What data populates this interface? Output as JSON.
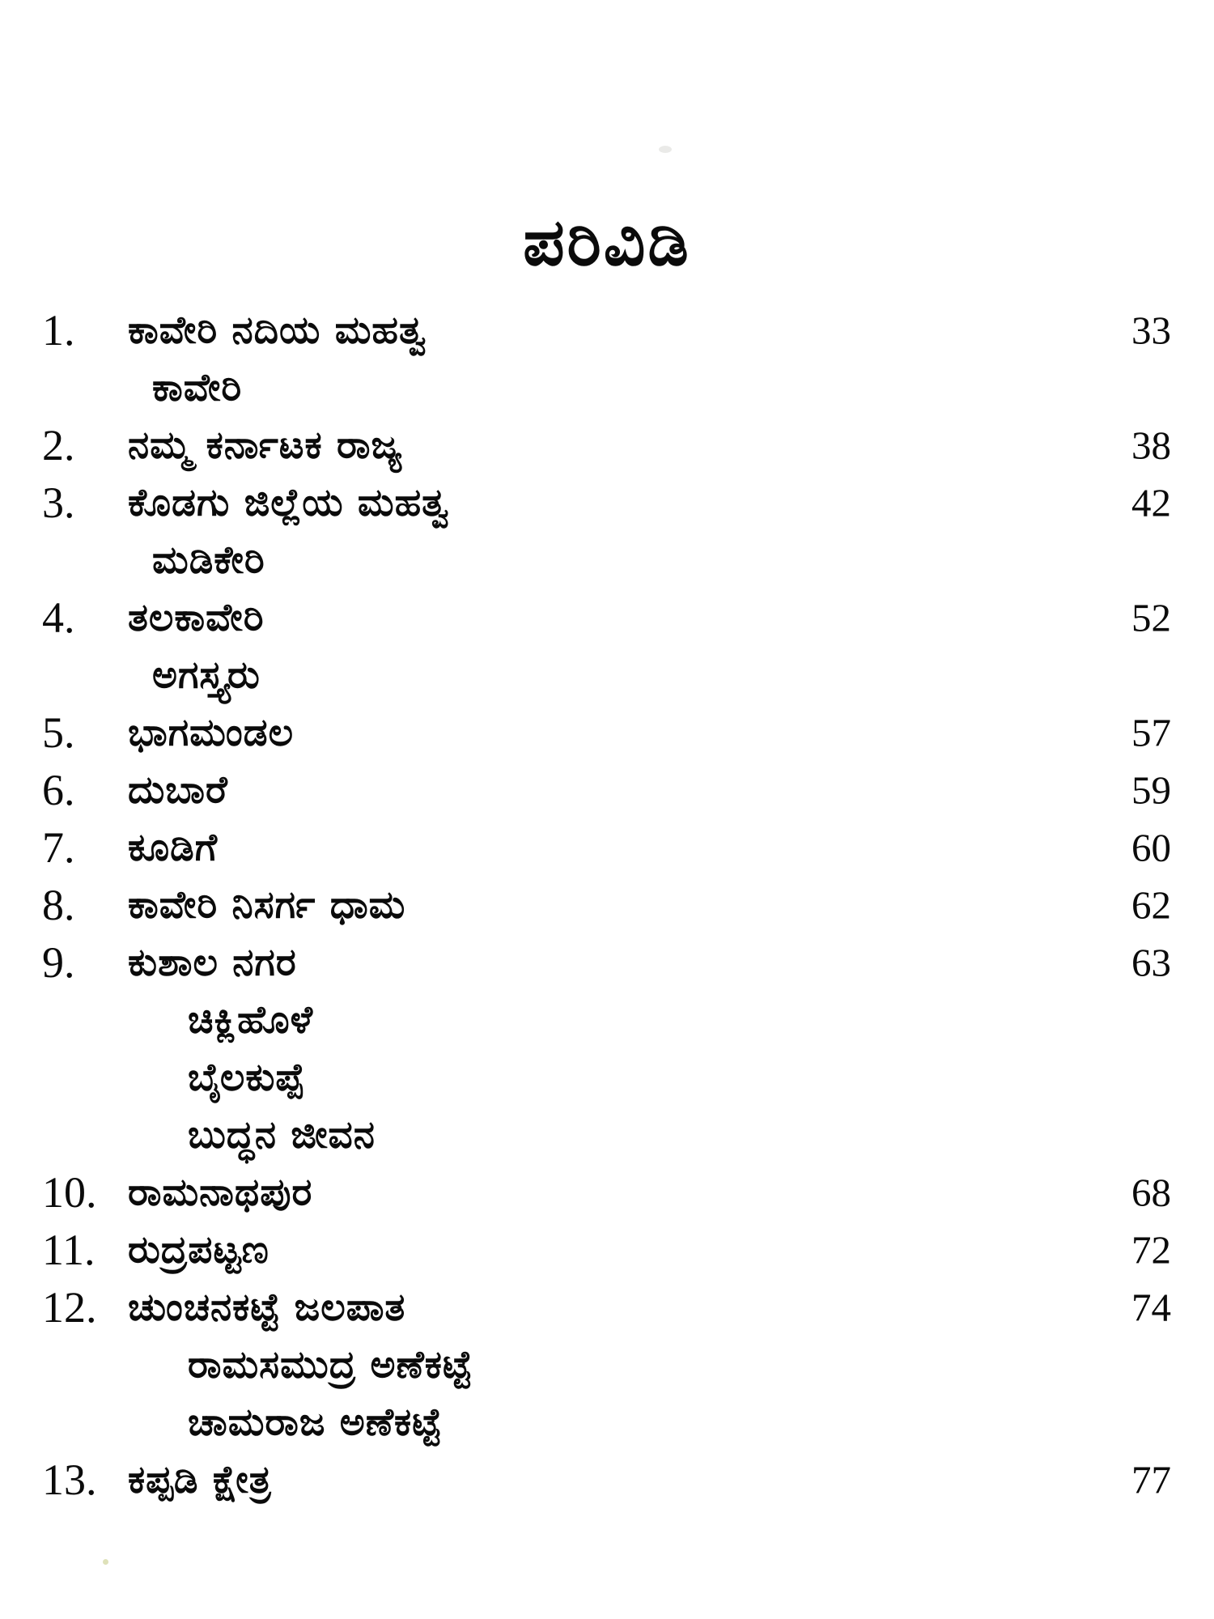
{
  "page": {
    "title": "ಪರಿವಿಡಿ"
  },
  "toc": {
    "entries": [
      {
        "num": "1.",
        "title": "ಕಾವೇರಿ ನದಿಯ ಮಹತ್ವ",
        "page": "33",
        "subs": [
          "ಕಾವೇರಿ"
        ]
      },
      {
        "num": "2.",
        "title": "ನಮ್ಮ ಕರ್ನಾಟಕ ರಾಜ್ಯ",
        "page": "38",
        "subs": []
      },
      {
        "num": "3.",
        "title": "ಕೊಡಗು ಜಿಲ್ಲೆಯ ಮಹತ್ವ",
        "page": "42",
        "subs": [
          "ಮಡಿಕೇರಿ"
        ]
      },
      {
        "num": "4.",
        "title": "ತಲಕಾವೇರಿ",
        "page": "52",
        "subs": [
          "ಅಗಸ್ತ್ಯರು"
        ]
      },
      {
        "num": "5.",
        "title": "ಭಾಗಮಂಡಲ",
        "page": "57",
        "subs": []
      },
      {
        "num": "6.",
        "title": "ದುಬಾರೆ",
        "page": "59",
        "subs": []
      },
      {
        "num": "7.",
        "title": "ಕೂಡಿಗೆ",
        "page": "60",
        "subs": []
      },
      {
        "num": "8.",
        "title": "ಕಾವೇರಿ ನಿಸರ್ಗ ಧಾಮ",
        "page": "62",
        "subs": []
      },
      {
        "num": "9.",
        "title": "ಕುಶಾಲ ನಗರ",
        "page": "63",
        "subs": [
          "ಚಿಕ್ಲಿಹೊಳೆ",
          "ಬೈಲಕುಪ್ಪೆ",
          "ಬುದ್ಧನ ಜೀವನ"
        ]
      },
      {
        "num": "10.",
        "title": "ರಾಮನಾಥಪುರ",
        "page": "68",
        "subs": []
      },
      {
        "num": "11.",
        "title": "ರುದ್ರಪಟ್ಟಣ",
        "page": "72",
        "subs": []
      },
      {
        "num": "12.",
        "title": "ಚುಂಚನಕಟ್ಟೆ ಜಲಪಾತ",
        "page": "74",
        "subs": [
          "ರಾಮಸಮುದ್ರ ಅಣೆಕಟ್ಟೆ",
          "ಚಾಮರಾಜ ಅಣೆಕಟ್ಟೆ"
        ]
      },
      {
        "num": "13.",
        "title": "ಕಪ್ಪಡಿ ಕ್ಷೇತ್ರ",
        "page": "77",
        "subs": []
      }
    ]
  }
}
